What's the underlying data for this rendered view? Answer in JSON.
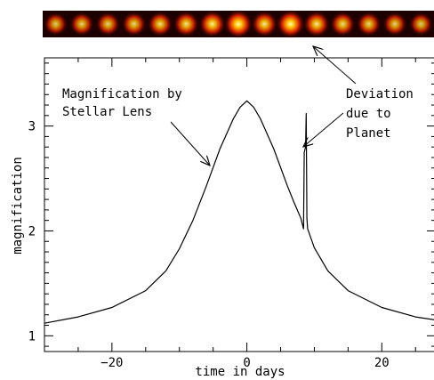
{
  "chart_data": {
    "type": "line",
    "title": "",
    "xlabel": "time in days",
    "ylabel": "magnification",
    "xlim": [
      -30,
      28
    ],
    "ylim": [
      0.85,
      3.65
    ],
    "x_ticks": [
      {
        "value": -20,
        "label": "−20"
      },
      {
        "value": 0,
        "label": "0"
      },
      {
        "value": 20,
        "label": "20"
      }
    ],
    "y_ticks": [
      {
        "value": 1,
        "label": "1"
      },
      {
        "value": 2,
        "label": "2"
      },
      {
        "value": 3,
        "label": "3"
      }
    ],
    "series": [
      {
        "points": [
          [
            -30,
            1.12
          ],
          [
            -25,
            1.18
          ],
          [
            -20,
            1.27
          ],
          [
            -15,
            1.43
          ],
          [
            -12,
            1.62
          ],
          [
            -10,
            1.83
          ],
          [
            -8,
            2.1
          ],
          [
            -6,
            2.43
          ],
          [
            -4,
            2.78
          ],
          [
            -2,
            3.07
          ],
          [
            -1,
            3.18
          ],
          [
            0,
            3.24
          ],
          [
            1,
            3.18
          ],
          [
            2,
            3.07
          ],
          [
            4,
            2.78
          ],
          [
            6,
            2.43
          ],
          [
            7,
            2.27
          ],
          [
            8,
            2.12
          ],
          [
            8.4,
            2.02
          ],
          [
            8.5,
            2.75
          ],
          [
            8.7,
            2.8
          ],
          [
            8.8,
            3.12
          ],
          [
            8.9,
            2.12
          ],
          [
            9,
            2.02
          ],
          [
            10,
            1.84
          ],
          [
            12,
            1.62
          ],
          [
            15,
            1.43
          ],
          [
            20,
            1.27
          ],
          [
            25,
            1.18
          ],
          [
            28,
            1.15
          ]
        ]
      }
    ],
    "annotations": [
      {
        "lines": [
          "Magnification by",
          "Stellar Lens"
        ]
      },
      {
        "lines": [
          "Deviation",
          "due to",
          "Planet"
        ]
      }
    ],
    "inset": {
      "type": "image_strip",
      "description_colors": {
        "background": "#160000",
        "blob": "#d42000",
        "bright": "#ffff70"
      },
      "spot_brightness": [
        0.55,
        0.6,
        0.6,
        0.65,
        0.7,
        0.75,
        0.85,
        1.0,
        0.8,
        1.0,
        0.8,
        0.7,
        0.65,
        0.6,
        0.55
      ]
    }
  }
}
